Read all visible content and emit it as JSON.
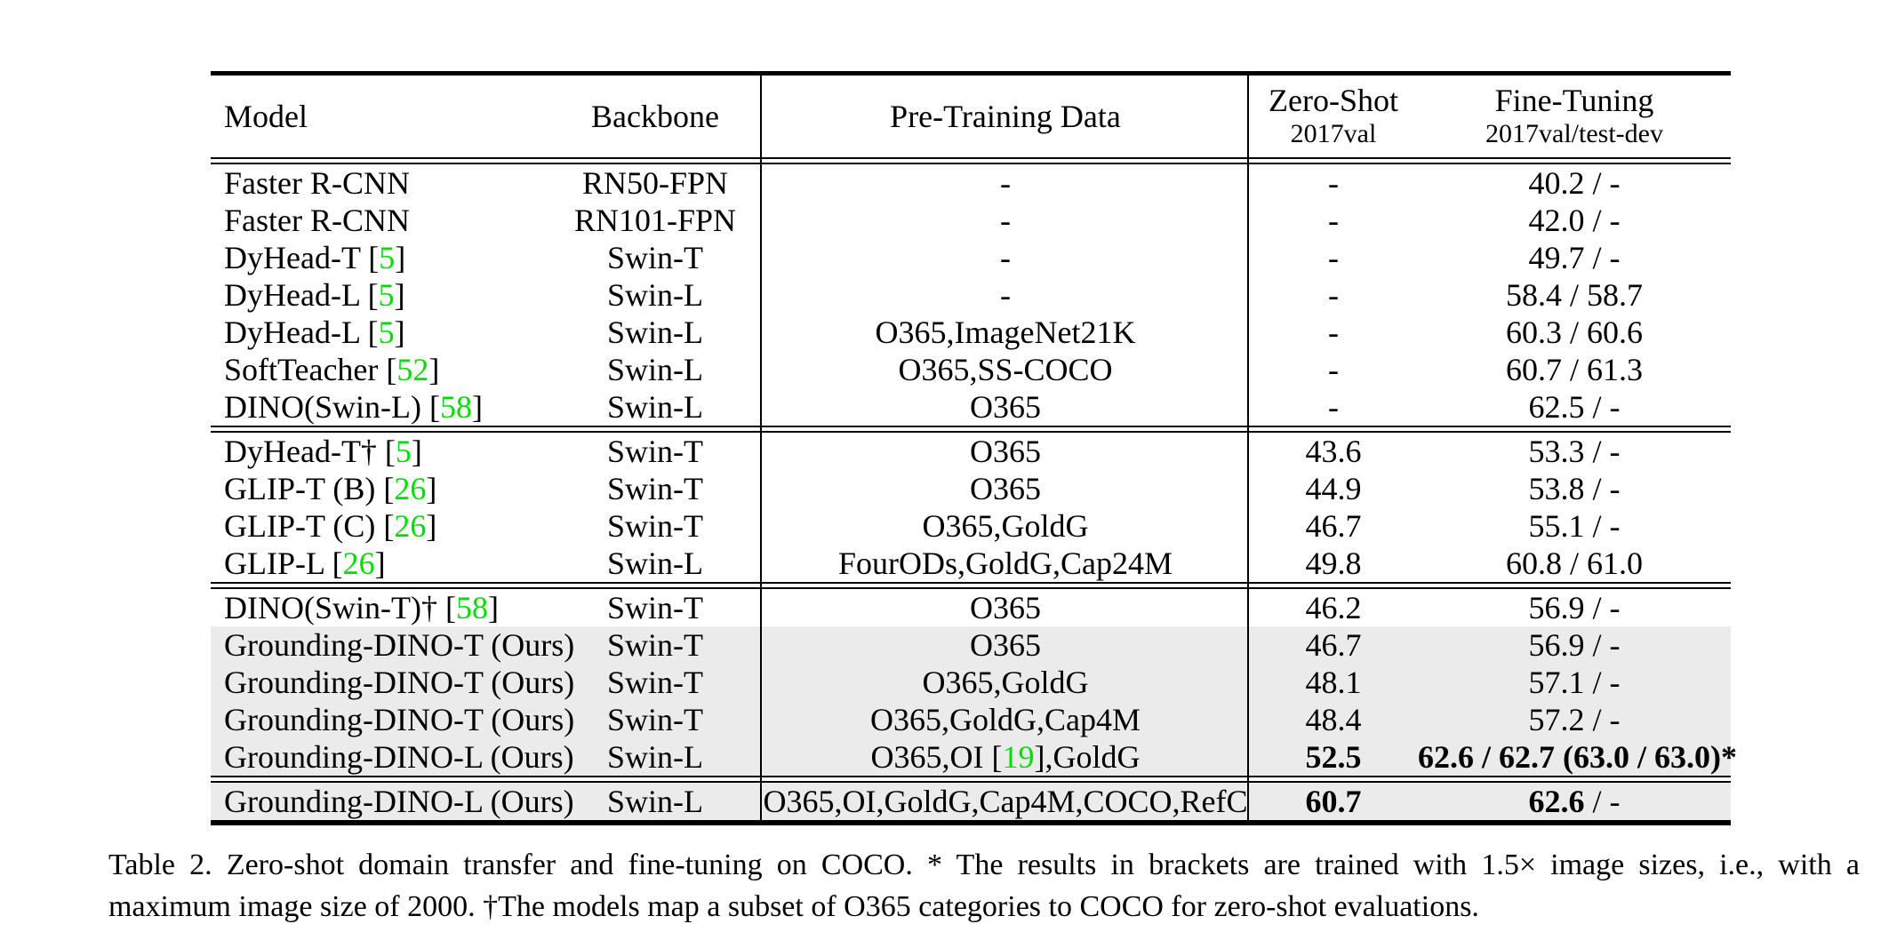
{
  "colors": {
    "citation_green": "#00dd00",
    "row_shade": "#ebebeb",
    "text": "#000000",
    "background": "#ffffff"
  },
  "table": {
    "header": {
      "model": "Model",
      "backbone": "Backbone",
      "pretrain": "Pre-Training Data",
      "zeroshot": {
        "title": "Zero-Shot",
        "sub": "2017val"
      },
      "finetune": {
        "title": "Fine-Tuning",
        "sub": "2017val/test-dev"
      }
    },
    "blocks": [
      {
        "rows": [
          {
            "model": "Faster R-CNN",
            "backbone": "RN50-FPN",
            "pretrain": "-",
            "zs": "-",
            "ft": "40.2 / -",
            "shaded": false
          },
          {
            "model": "Faster R-CNN",
            "backbone": "RN101-FPN",
            "pretrain": "-",
            "zs": "-",
            "ft": "42.0 / -",
            "shaded": false
          },
          {
            "model": "DyHead-T [5]",
            "backbone": "Swin-T",
            "pretrain": "-",
            "zs": "-",
            "ft": "49.7 / -",
            "shaded": false
          },
          {
            "model": "DyHead-L [5]",
            "backbone": "Swin-L",
            "pretrain": "-",
            "zs": "-",
            "ft": "58.4 / 58.7",
            "shaded": false
          },
          {
            "model": "DyHead-L [5]",
            "backbone": "Swin-L",
            "pretrain": "O365,ImageNet21K",
            "zs": "-",
            "ft": "60.3 / 60.6",
            "shaded": false
          },
          {
            "model": "SoftTeacher [52]",
            "backbone": "Swin-L",
            "pretrain": "O365,SS-COCO",
            "zs": "-",
            "ft": "60.7 / 61.3",
            "shaded": false
          },
          {
            "model": "DINO(Swin-L) [58]",
            "backbone": "Swin-L",
            "pretrain": "O365",
            "zs": "-",
            "ft": "62.5 / -",
            "shaded": false
          }
        ]
      },
      {
        "rows": [
          {
            "model": "DyHead-T† [5]",
            "backbone": "Swin-T",
            "pretrain": "O365",
            "zs": "43.6",
            "ft": "53.3 / -",
            "shaded": false
          },
          {
            "model": "GLIP-T (B) [26]",
            "backbone": "Swin-T",
            "pretrain": "O365",
            "zs": "44.9",
            "ft": "53.8 / -",
            "shaded": false
          },
          {
            "model": "GLIP-T (C) [26]",
            "backbone": "Swin-T",
            "pretrain": "O365,GoldG",
            "zs": "46.7",
            "ft": "55.1 / -",
            "shaded": false
          },
          {
            "model": "GLIP-L [26]",
            "backbone": "Swin-L",
            "pretrain": "FourODs,GoldG,Cap24M",
            "zs": "49.8",
            "ft": "60.8 / 61.0",
            "shaded": false
          }
        ]
      },
      {
        "rows": [
          {
            "model": "DINO(Swin-T)† [58]",
            "backbone": "Swin-T",
            "pretrain": "O365",
            "zs": "46.2",
            "ft": "56.9 / -",
            "shaded": false
          },
          {
            "model": "Grounding-DINO-T (Ours)",
            "backbone": "Swin-T",
            "pretrain": "O365",
            "zs": "46.7",
            "ft": "56.9 / -",
            "shaded": true
          },
          {
            "model": "Grounding-DINO-T (Ours)",
            "backbone": "Swin-T",
            "pretrain": "O365,GoldG",
            "zs": "48.1",
            "ft": "57.1 / -",
            "shaded": true
          },
          {
            "model": "Grounding-DINO-T (Ours)",
            "backbone": "Swin-T",
            "pretrain": "O365,GoldG,Cap4M",
            "zs": "48.4",
            "ft": "57.2 / -",
            "shaded": true
          },
          {
            "model": "Grounding-DINO-L (Ours)",
            "backbone": "Swin-L",
            "pretrain": "O365,OI [19],GoldG",
            "zs": "**52.5**",
            "ft": "**62.6 / 62.7 (63.0 / 63.0)***",
            "shaded": true
          }
        ]
      },
      {
        "rows": [
          {
            "model": "Grounding-DINO-L (Ours)",
            "backbone": "Swin-L",
            "pretrain": "O365,OI,GoldG,Cap4M,COCO,RefC",
            "zs": "**60.7**",
            "ft": "**62.6** / -",
            "shaded": true
          }
        ]
      }
    ]
  },
  "caption": {
    "line1": "Table 2. Zero-shot domain transfer and fine-tuning on COCO. * The results in brackets are trained with 1.5× image sizes, i.e., with a",
    "line2": "maximum image size of 2000. †The models map a subset of O365 categories to COCO for zero-shot evaluations."
  }
}
